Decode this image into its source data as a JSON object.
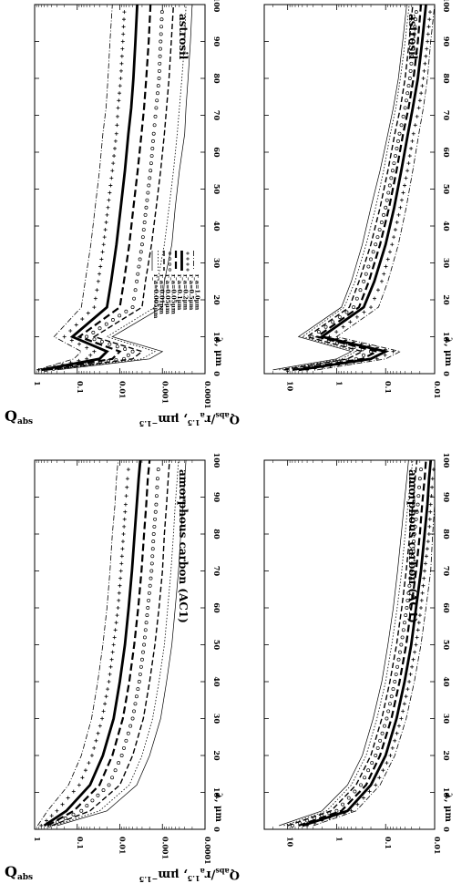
{
  "figure": {
    "yaxis_left_label": "Q",
    "yaxis_left_sub": "abs",
    "yaxis_right_label": "Q",
    "yaxis_right_sub": "abs",
    "yaxis_right_rest": "/r",
    "yaxis_right_sub2": "a",
    "yaxis_right_sup": "1.5",
    "yaxis_right_unit": ", μm",
    "yaxis_right_unit_sup": "−1.5",
    "xaxis_label": "λ, μm"
  },
  "chart_data": [
    {
      "type": "line",
      "panel": "top-left",
      "title": "astrosil",
      "xlabel": "λ, μm",
      "ylabel": "Qabs",
      "xlim": [
        0,
        100
      ],
      "ylim": [
        0.0001,
        1
      ],
      "log_y": true,
      "x_ticks": [
        "0",
        "10",
        "20",
        "30",
        "40",
        "50",
        "60",
        "70",
        "80",
        "90",
        "100"
      ],
      "y_ticks": [
        "1",
        "0.1",
        "0.01",
        "0.001",
        "0.0001"
      ],
      "legend": [
        "r_a=0.005μm",
        "r_a=0.01μm",
        "r_a=0.05μm",
        "r_a=0.05μm",
        "r_a=0.1μm",
        "r_a=0.2μm",
        "r_a=0.5μm",
        "r_a=1.0μm"
      ],
      "legend_position": "top-right",
      "series": [
        {
          "name": "r_a=0.005μm",
          "style": "thin",
          "values": [
            0.3,
            0.002,
            0.001,
            0.015,
            0.001,
            0.0009,
            0.0006,
            0.0005,
            0.0004,
            0.0003,
            0.00028,
            0.00025,
            0.00022,
            0.0002
          ]
        },
        {
          "name": "r_a=0.01μm",
          "style": "dotted-fine",
          "values": [
            0.4,
            0.003,
            0.0015,
            0.02,
            0.0015,
            0.0013,
            0.0009,
            0.0007,
            0.00055,
            0.00045,
            0.0004,
            0.00035,
            0.0003,
            0.00028
          ]
        },
        {
          "name": "r_a=0.05μm",
          "style": "dashed",
          "values": [
            0.5,
            0.005,
            0.003,
            0.04,
            0.003,
            0.0025,
            0.0018,
            0.0014,
            0.0011,
            0.0009,
            0.0008,
            0.0007,
            0.00062,
            0.00055
          ]
        },
        {
          "name": "r_a=0.05μm",
          "style": "open-circles",
          "values": [
            0.55,
            0.008,
            0.005,
            0.06,
            0.005,
            0.004,
            0.003,
            0.0024,
            0.0019,
            0.0016,
            0.0014,
            0.0012,
            0.0011,
            0.001
          ]
        },
        {
          "name": "r_a=0.1μm",
          "style": "dashed-heavy",
          "values": [
            0.6,
            0.015,
            0.01,
            0.09,
            0.01,
            0.008,
            0.006,
            0.0048,
            0.0038,
            0.0031,
            0.0027,
            0.0024,
            0.0021,
            0.0019
          ]
        },
        {
          "name": "r_a=0.2μm",
          "style": "thick",
          "values": [
            0.7,
            0.03,
            0.02,
            0.13,
            0.02,
            0.016,
            0.012,
            0.0095,
            0.0076,
            0.0063,
            0.0054,
            0.0048,
            0.0043,
            0.0039
          ]
        },
        {
          "name": "r_a=0.5μm",
          "style": "plus",
          "values": [
            0.8,
            0.06,
            0.04,
            0.2,
            0.04,
            0.032,
            0.024,
            0.019,
            0.015,
            0.012,
            0.011,
            0.0095,
            0.0085,
            0.0077
          ]
        },
        {
          "name": "r_a=1.0μm",
          "style": "dash-dot",
          "values": [
            0.9,
            0.12,
            0.08,
            0.35,
            0.08,
            0.065,
            0.048,
            0.038,
            0.03,
            0.025,
            0.021,
            0.019,
            0.017,
            0.015
          ]
        }
      ],
      "x": [
        1,
        4,
        6,
        10,
        18,
        25,
        35,
        45,
        55,
        65,
        72,
        80,
        90,
        100
      ]
    },
    {
      "type": "line",
      "panel": "top-right",
      "title": "astrosil",
      "xlabel": "λ, μm",
      "ylabel": "Qabs/ra^1.5, μm^-1.5",
      "xlim": [
        0,
        100
      ],
      "ylim": [
        0.01,
        30
      ],
      "log_y": true,
      "x_ticks": [
        "0",
        "10",
        "20",
        "30",
        "40",
        "50",
        "60",
        "70",
        "80",
        "90",
        "100"
      ],
      "y_ticks": [
        "10",
        "1",
        "0.1",
        "0.01"
      ],
      "series": [
        {
          "style": "thin",
          "values": [
            20,
            1,
            0.5,
            6,
            0.8,
            0.5,
            0.3,
            0.2,
            0.13,
            0.09,
            0.07,
            0.055,
            0.045,
            0.037
          ]
        },
        {
          "style": "dotted-fine",
          "values": [
            15,
            0.8,
            0.4,
            5,
            0.7,
            0.42,
            0.25,
            0.16,
            0.11,
            0.08,
            0.062,
            0.05,
            0.04,
            0.033
          ]
        },
        {
          "style": "dashed",
          "values": [
            12,
            0.6,
            0.3,
            4,
            0.55,
            0.35,
            0.2,
            0.13,
            0.09,
            0.065,
            0.05,
            0.04,
            0.033,
            0.028
          ]
        },
        {
          "style": "open-circles",
          "values": [
            10,
            0.4,
            0.2,
            3.2,
            0.45,
            0.28,
            0.16,
            0.1,
            0.072,
            0.052,
            0.04,
            0.032,
            0.027,
            0.023
          ]
        },
        {
          "style": "dashed-heavy",
          "values": [
            8,
            0.3,
            0.15,
            2.5,
            0.35,
            0.22,
            0.13,
            0.085,
            0.06,
            0.044,
            0.034,
            0.027,
            0.022,
            0.019
          ]
        },
        {
          "style": "thick",
          "values": [
            6,
            0.2,
            0.1,
            2,
            0.28,
            0.17,
            0.1,
            0.067,
            0.048,
            0.035,
            0.028,
            0.022,
            0.018,
            0.015
          ]
        },
        {
          "style": "plus",
          "values": [
            4,
            0.15,
            0.07,
            1.4,
            0.2,
            0.12,
            0.074,
            0.05,
            0.036,
            0.027,
            0.021,
            0.017,
            0.014,
            0.012
          ]
        },
        {
          "style": "dash-dot",
          "values": [
            2.5,
            0.1,
            0.05,
            1,
            0.14,
            0.09,
            0.055,
            0.038,
            0.028,
            0.021,
            0.017,
            0.014,
            0.012,
            0.01
          ]
        }
      ],
      "x": [
        1,
        4,
        6,
        10,
        18,
        25,
        35,
        45,
        55,
        65,
        72,
        80,
        90,
        100
      ]
    },
    {
      "type": "line",
      "panel": "bottom-left",
      "title": "amorphous carbon (AC1)",
      "xlabel": "λ, μm",
      "ylabel": "Qabs",
      "xlim": [
        0,
        100
      ],
      "ylim": [
        0.0001,
        1
      ],
      "log_y": true,
      "x_ticks": [
        "0",
        "10",
        "20",
        "30",
        "40",
        "50",
        "60",
        "70",
        "80",
        "90",
        "100"
      ],
      "y_ticks": [
        "1",
        "0.1",
        "0.01",
        "0.001",
        "0.0001"
      ],
      "series": [
        {
          "style": "thin",
          "values": [
            0.3,
            0.02,
            0.004,
            0.002,
            0.0011,
            0.0008,
            0.0006,
            0.0005,
            0.00042,
            0.00037,
            0.00033,
            0.0003,
            0.00028
          ]
        },
        {
          "style": "dotted-fine",
          "values": [
            0.35,
            0.03,
            0.006,
            0.003,
            0.0017,
            0.0012,
            0.0009,
            0.00075,
            0.00063,
            0.00055,
            0.0005,
            0.00045,
            0.00042
          ]
        },
        {
          "style": "dashed",
          "values": [
            0.4,
            0.05,
            0.01,
            0.005,
            0.0028,
            0.002,
            0.0015,
            0.0012,
            0.001,
            0.0009,
            0.0008,
            0.00073,
            0.00068
          ]
        },
        {
          "style": "open-circles",
          "values": [
            0.45,
            0.08,
            0.018,
            0.009,
            0.005,
            0.0035,
            0.0027,
            0.0022,
            0.0018,
            0.0016,
            0.0014,
            0.0013,
            0.0012
          ]
        },
        {
          "style": "dashed-heavy",
          "values": [
            0.5,
            0.12,
            0.03,
            0.015,
            0.0085,
            0.006,
            0.0046,
            0.0037,
            0.0031,
            0.0027,
            0.0024,
            0.0022,
            0.002
          ]
        },
        {
          "style": "thick",
          "values": [
            0.6,
            0.18,
            0.05,
            0.025,
            0.014,
            0.01,
            0.0076,
            0.0062,
            0.0052,
            0.0045,
            0.004,
            0.0036,
            0.0033
          ]
        },
        {
          "style": "plus",
          "values": [
            0.7,
            0.3,
            0.09,
            0.045,
            0.026,
            0.018,
            0.014,
            0.011,
            0.0094,
            0.0082,
            0.0073,
            0.0066,
            0.006
          ]
        },
        {
          "style": "dash-dot",
          "values": [
            0.85,
            0.5,
            0.16,
            0.08,
            0.046,
            0.033,
            0.025,
            0.02,
            0.017,
            0.015,
            0.013,
            0.012,
            0.011
          ]
        }
      ],
      "x": [
        1,
        5,
        12,
        20,
        30,
        40,
        50,
        60,
        70,
        80,
        88,
        95,
        100
      ]
    },
    {
      "type": "line",
      "panel": "bottom-right",
      "title": "amorphous carbon (AC1)",
      "xlabel": "λ, μm",
      "ylabel": "Qabs/ra^1.5, μm^-1.5",
      "xlim": [
        0,
        100
      ],
      "ylim": [
        0.01,
        30
      ],
      "log_y": true,
      "x_ticks": [
        "0",
        "10",
        "20",
        "30",
        "40",
        "50",
        "60",
        "70",
        "80",
        "90",
        "100"
      ],
      "y_ticks": [
        "10",
        "1",
        "0.1",
        "0.01"
      ],
      "series": [
        {
          "style": "thin",
          "values": [
            15,
            2,
            0.6,
            0.3,
            0.18,
            0.12,
            0.09,
            0.07,
            0.057,
            0.048,
            0.042,
            0.037,
            0.034
          ]
        },
        {
          "style": "dotted-fine",
          "values": [
            12,
            1.6,
            0.5,
            0.25,
            0.15,
            0.1,
            0.075,
            0.058,
            0.047,
            0.04,
            0.035,
            0.031,
            0.028
          ]
        },
        {
          "style": "dashed",
          "values": [
            10,
            1.3,
            0.4,
            0.2,
            0.12,
            0.082,
            0.06,
            0.047,
            0.038,
            0.032,
            0.028,
            0.025,
            0.023
          ]
        },
        {
          "style": "open-circles",
          "values": [
            8,
            1,
            0.32,
            0.16,
            0.095,
            0.065,
            0.048,
            0.037,
            0.03,
            0.026,
            0.022,
            0.02,
            0.018
          ]
        },
        {
          "style": "dashed-heavy",
          "values": [
            6,
            0.8,
            0.25,
            0.13,
            0.076,
            0.052,
            0.038,
            0.03,
            0.024,
            0.02,
            0.018,
            0.016,
            0.015
          ]
        },
        {
          "style": "thick",
          "values": [
            5,
            0.6,
            0.2,
            0.1,
            0.06,
            0.041,
            0.03,
            0.024,
            0.019,
            0.016,
            0.014,
            0.013,
            0.012
          ]
        },
        {
          "style": "plus",
          "values": [
            4,
            0.5,
            0.16,
            0.08,
            0.048,
            0.033,
            0.024,
            0.019,
            0.016,
            0.013,
            0.012,
            0.011,
            0.01
          ]
        },
        {
          "style": "dash-dot",
          "values": [
            3,
            0.4,
            0.13,
            0.065,
            0.038,
            0.026,
            0.019,
            0.015,
            0.012,
            0.011,
            0.0095,
            0.0087,
            0.008
          ]
        }
      ],
      "x": [
        1,
        5,
        12,
        20,
        30,
        40,
        50,
        60,
        70,
        80,
        88,
        95,
        100
      ]
    }
  ]
}
